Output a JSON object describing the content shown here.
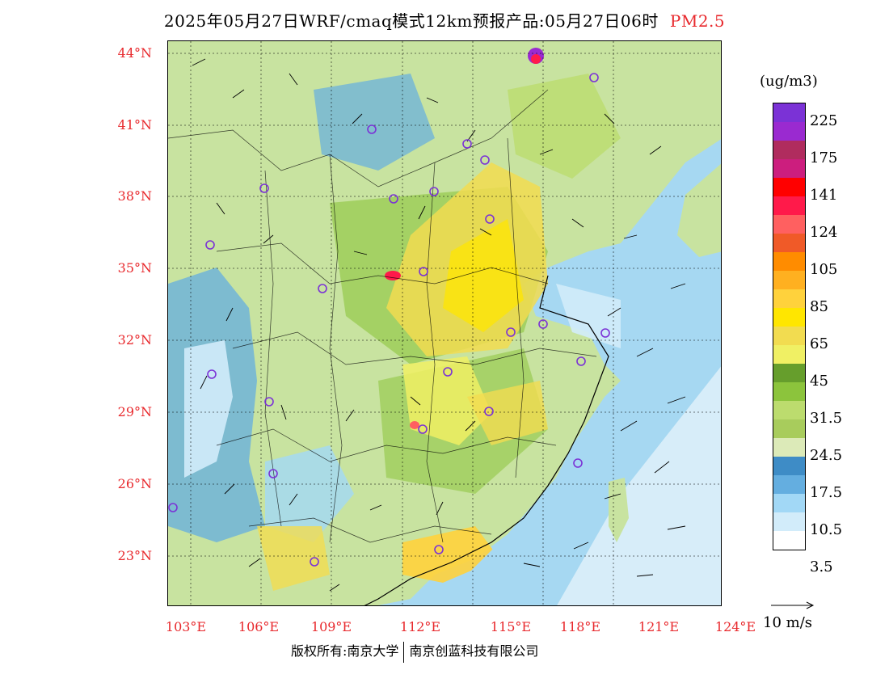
{
  "title": "2025年05月27日WRF/cmaq模式12km预报产品:05月27日06时",
  "pollutant": "PM2.5",
  "map": {
    "lat_labels": [
      "44°N",
      "41°N",
      "38°N",
      "35°N",
      "32°N",
      "29°N",
      "26°N",
      "23°N"
    ],
    "lon_labels": [
      "103°E",
      "106°E",
      "109°E",
      "112°E",
      "115°E",
      "118°E",
      "121°E",
      "124°E"
    ],
    "land_color": "#c8e3a0",
    "sea_color": "#a6d8f2"
  },
  "credit": {
    "owner": "版权所有:南京大学",
    "company": "南京创蓝科技有限公司"
  },
  "legend": {
    "unit": "(ug/m3)",
    "colors": [
      "#7b32d6",
      "#9a2ad0",
      "#b02c5e",
      "#cc1e7e",
      "#ff0000",
      "#ff1a4a",
      "#ff6060",
      "#f05a28",
      "#ff8c00",
      "#ffb020",
      "#ffd23c",
      "#ffe600",
      "#f2dc50",
      "#f0f064",
      "#669e2c",
      "#8cc43c",
      "#bcdc6e",
      "#a8cc5c",
      "#dceab8",
      "#3e8cc6",
      "#64aee0",
      "#a2d8f6",
      "#d2ecfa",
      "#ffffff"
    ],
    "labels": [
      "225",
      "175",
      "141",
      "124",
      "105",
      "85",
      "65",
      "45",
      "31.5",
      "24.5",
      "17.5",
      "10.5",
      "3.5"
    ]
  },
  "wind_reference": "10 m/s"
}
